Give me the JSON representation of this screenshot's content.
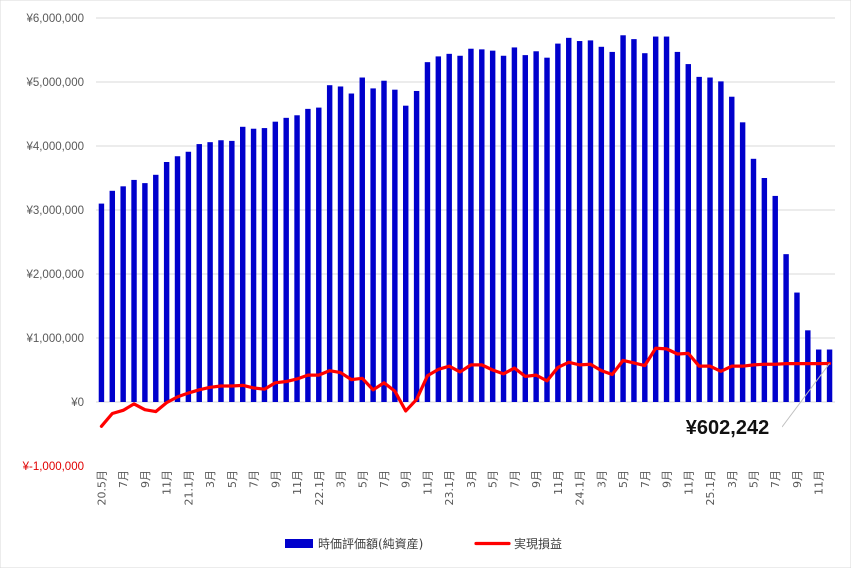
{
  "chart_data": {
    "type": "bar",
    "ylim": [
      -1000000,
      6000000
    ],
    "yticks": [
      -1000000,
      0,
      1000000,
      2000000,
      3000000,
      4000000,
      5000000,
      6000000
    ],
    "ytick_labels": [
      "¥-1,000,000",
      "¥0",
      "¥1,000,000",
      "¥2,000,000",
      "¥3,000,000",
      "¥4,000,000",
      "¥5,000,000",
      "¥6,000,000"
    ],
    "negative_tick_color": "#e00000",
    "grid": true,
    "legend_position": "bottom",
    "categories": [
      "20.5月",
      "",
      "7月",
      "",
      "9月",
      "",
      "11月",
      "",
      "21.1月",
      "",
      "3月",
      "",
      "5月",
      "",
      "7月",
      "",
      "9月",
      "",
      "11月",
      "",
      "22.1月",
      "",
      "3月",
      "",
      "5月",
      "",
      "7月",
      "",
      "9月",
      "",
      "11月",
      "",
      "23.1月",
      "",
      "3月",
      "",
      "5月",
      "",
      "7月",
      "",
      "9月",
      "",
      "11月",
      "",
      "24.1月",
      "",
      "3月",
      "",
      "5月",
      "",
      "7月",
      "",
      "9月",
      "",
      "11月",
      "",
      "25.1月",
      "",
      "3月",
      "",
      "5月",
      "",
      "7月",
      "",
      "9月",
      "",
      "11月",
      ""
    ],
    "series": [
      {
        "name": "時価評価額(純資産)",
        "type": "bar",
        "color": "#0000cc",
        "values": [
          3100000,
          3300000,
          3370000,
          3470000,
          3420000,
          3550000,
          3750000,
          3840000,
          3910000,
          4030000,
          4060000,
          4090000,
          4080000,
          4300000,
          4270000,
          4280000,
          4380000,
          4440000,
          4480000,
          4580000,
          4600000,
          4950000,
          4930000,
          4820000,
          5070000,
          4900000,
          5020000,
          4880000,
          4630000,
          4860000,
          5310000,
          5400000,
          5440000,
          5410000,
          5520000,
          5510000,
          5490000,
          5410000,
          5540000,
          5420000,
          5480000,
          5380000,
          5600000,
          5690000,
          5640000,
          5650000,
          5550000,
          5470000,
          5730000,
          5670000,
          5450000,
          5710000,
          5710000,
          5470000,
          5280000,
          5080000,
          5070000,
          5010000,
          4770000,
          4370000,
          3800000,
          3500000,
          3220000,
          2310000,
          1710000,
          1120000,
          820000,
          820000
        ]
      },
      {
        "name": "実現損益",
        "type": "line",
        "color": "#ff0000",
        "values": [
          -380000,
          -180000,
          -130000,
          -30000,
          -120000,
          -150000,
          -10000,
          80000,
          140000,
          190000,
          230000,
          250000,
          250000,
          260000,
          220000,
          200000,
          300000,
          320000,
          360000,
          420000,
          420000,
          490000,
          460000,
          350000,
          370000,
          190000,
          300000,
          170000,
          -140000,
          40000,
          410000,
          510000,
          560000,
          470000,
          580000,
          580000,
          500000,
          440000,
          530000,
          400000,
          420000,
          330000,
          540000,
          620000,
          580000,
          590000,
          490000,
          430000,
          650000,
          610000,
          570000,
          840000,
          830000,
          750000,
          760000,
          560000,
          560000,
          480000,
          560000,
          560000,
          580000,
          590000,
          590000,
          600000,
          600000,
          600000,
          600000,
          602242
        ]
      }
    ],
    "annotations": [
      {
        "text": "¥602,242",
        "series": "実現損益",
        "point_index": 67
      }
    ]
  }
}
